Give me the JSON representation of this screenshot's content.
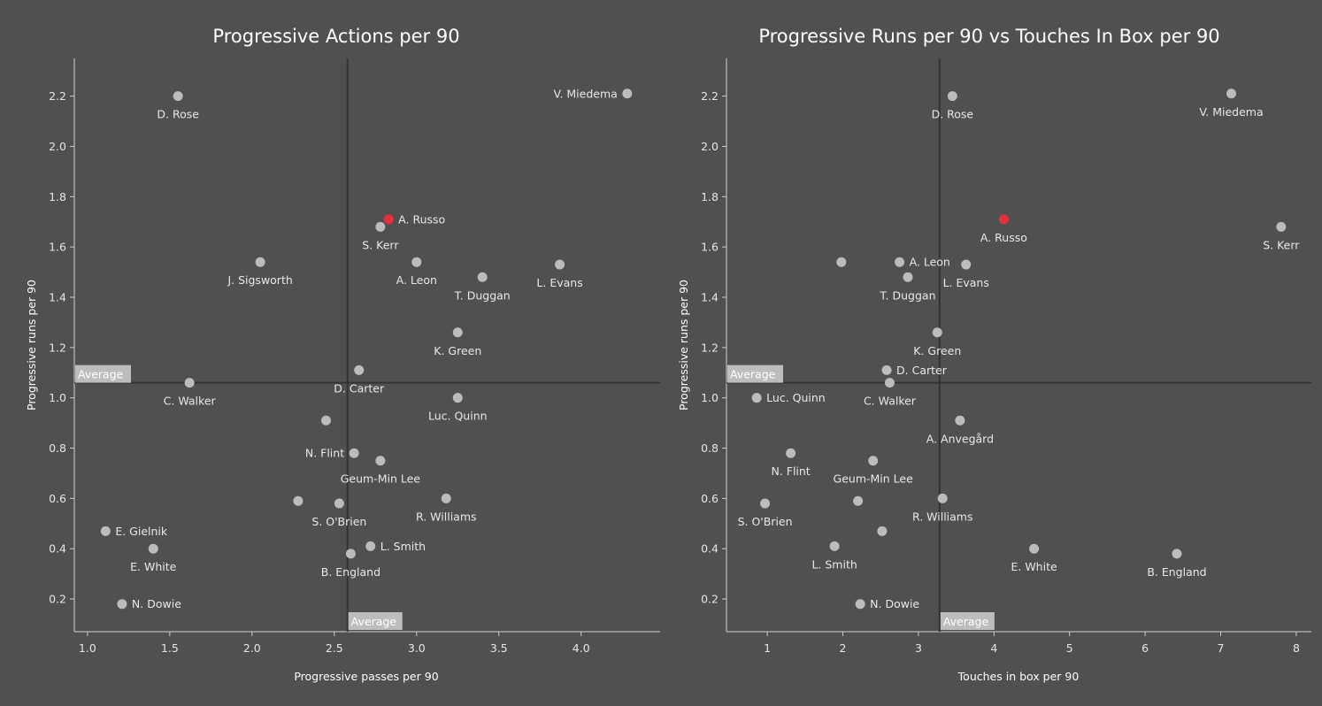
{
  "colors": {
    "background": "#505050",
    "point": "#bcbcbc",
    "highlight": "#e8303a",
    "average_line": "#333333",
    "axis": "#d0d0d0",
    "average_box": "#bdbdbd"
  },
  "chart_data": [
    {
      "type": "scatter",
      "title": "Progressive Actions per 90",
      "xlabel": "Progressive passes per 90",
      "ylabel": "Progressive runs per 90",
      "xlim": [
        0.92,
        4.48
      ],
      "ylim": [
        0.07,
        2.35
      ],
      "xticks": [
        1.0,
        1.5,
        2.0,
        2.5,
        3.0,
        3.5,
        4.0
      ],
      "yticks": [
        0.2,
        0.4,
        0.6,
        0.8,
        1.0,
        1.2,
        1.4,
        1.6,
        1.8,
        2.0,
        2.2
      ],
      "tick_decimals": 1,
      "average_x": 2.58,
      "average_y": 1.06,
      "average_label": "Average",
      "highlight": "A. Russo",
      "points": [
        {
          "name": "V. Miedema",
          "x": 4.28,
          "y": 2.21,
          "label_pos": "left"
        },
        {
          "name": "D. Rose",
          "x": 1.55,
          "y": 2.2,
          "label_pos": "below"
        },
        {
          "name": "A. Russo",
          "x": 2.83,
          "y": 1.71,
          "label_pos": "right"
        },
        {
          "name": "S. Kerr",
          "x": 2.78,
          "y": 1.68,
          "label_pos": "below"
        },
        {
          "name": "J. Sigsworth",
          "x": 2.05,
          "y": 1.54,
          "label_pos": "below"
        },
        {
          "name": "A. Leon",
          "x": 3.0,
          "y": 1.54,
          "label_pos": "below"
        },
        {
          "name": "T. Duggan",
          "x": 3.4,
          "y": 1.48,
          "label_pos": "below"
        },
        {
          "name": "L. Evans",
          "x": 3.87,
          "y": 1.53,
          "label_pos": "below"
        },
        {
          "name": "K. Green",
          "x": 3.25,
          "y": 1.26,
          "label_pos": "below"
        },
        {
          "name": "D. Carter",
          "x": 2.65,
          "y": 1.11,
          "label_pos": "below"
        },
        {
          "name": "C. Walker",
          "x": 1.62,
          "y": 1.06,
          "label_pos": "below"
        },
        {
          "name": "Luc. Quinn",
          "x": 3.25,
          "y": 1.0,
          "label_pos": "below"
        },
        {
          "name": "",
          "x": 2.45,
          "y": 0.91,
          "label_pos": "none"
        },
        {
          "name": "N. Flint",
          "x": 2.62,
          "y": 0.78,
          "label_pos": "left"
        },
        {
          "name": "Geum-Min Lee",
          "x": 2.78,
          "y": 0.75,
          "label_pos": "below"
        },
        {
          "name": "",
          "x": 2.28,
          "y": 0.59,
          "label_pos": "none"
        },
        {
          "name": "S. O'Brien",
          "x": 2.53,
          "y": 0.58,
          "label_pos": "below"
        },
        {
          "name": "R. Williams",
          "x": 3.18,
          "y": 0.6,
          "label_pos": "below"
        },
        {
          "name": "L. Smith",
          "x": 2.72,
          "y": 0.41,
          "label_pos": "right"
        },
        {
          "name": "B. England",
          "x": 2.6,
          "y": 0.38,
          "label_pos": "below"
        },
        {
          "name": "E. Gielnik",
          "x": 1.11,
          "y": 0.47,
          "label_pos": "right"
        },
        {
          "name": "E. White",
          "x": 1.4,
          "y": 0.4,
          "label_pos": "below"
        },
        {
          "name": "N. Dowie",
          "x": 1.21,
          "y": 0.18,
          "label_pos": "right"
        }
      ]
    },
    {
      "type": "scatter",
      "title": "Progressive Runs per 90 vs Touches In Box per 90",
      "xlabel": "Touches in box per 90",
      "ylabel": "Progressive runs per 90",
      "xlim": [
        0.46,
        8.2
      ],
      "ylim": [
        0.07,
        2.35
      ],
      "xticks": [
        1,
        2,
        3,
        4,
        5,
        6,
        7,
        8
      ],
      "yticks": [
        0.2,
        0.4,
        0.6,
        0.8,
        1.0,
        1.2,
        1.4,
        1.6,
        1.8,
        2.0,
        2.2
      ],
      "tick_decimals": 1,
      "average_x": 3.28,
      "average_y": 1.06,
      "average_label": "Average",
      "highlight": "A. Russo",
      "points": [
        {
          "name": "V. Miedema",
          "x": 7.14,
          "y": 2.21,
          "label_pos": "below"
        },
        {
          "name": "D. Rose",
          "x": 3.45,
          "y": 2.2,
          "label_pos": "below"
        },
        {
          "name": "A. Russo",
          "x": 4.13,
          "y": 1.71,
          "label_pos": "below"
        },
        {
          "name": "S. Kerr",
          "x": 7.8,
          "y": 1.68,
          "label_pos": "below"
        },
        {
          "name": "",
          "x": 1.98,
          "y": 1.54,
          "label_pos": "none"
        },
        {
          "name": "A. Leon",
          "x": 2.75,
          "y": 1.54,
          "label_pos": "right"
        },
        {
          "name": "L. Evans",
          "x": 3.63,
          "y": 1.53,
          "label_pos": "below"
        },
        {
          "name": "T. Duggan",
          "x": 2.86,
          "y": 1.48,
          "label_pos": "below"
        },
        {
          "name": "K. Green",
          "x": 3.25,
          "y": 1.26,
          "label_pos": "below"
        },
        {
          "name": "D. Carter",
          "x": 2.58,
          "y": 1.11,
          "label_pos": "right"
        },
        {
          "name": "C. Walker",
          "x": 2.62,
          "y": 1.06,
          "label_pos": "below"
        },
        {
          "name": "Luc. Quinn",
          "x": 0.86,
          "y": 1.0,
          "label_pos": "right"
        },
        {
          "name": "A. Anvegård",
          "x": 3.55,
          "y": 0.91,
          "label_pos": "below"
        },
        {
          "name": "N. Flint",
          "x": 1.31,
          "y": 0.78,
          "label_pos": "below"
        },
        {
          "name": "Geum-Min Lee",
          "x": 2.4,
          "y": 0.75,
          "label_pos": "below"
        },
        {
          "name": "",
          "x": 2.2,
          "y": 0.59,
          "label_pos": "none"
        },
        {
          "name": "S. O'Brien",
          "x": 0.97,
          "y": 0.58,
          "label_pos": "below"
        },
        {
          "name": "R. Williams",
          "x": 3.32,
          "y": 0.6,
          "label_pos": "below"
        },
        {
          "name": "",
          "x": 2.52,
          "y": 0.47,
          "label_pos": "none"
        },
        {
          "name": "L. Smith",
          "x": 1.89,
          "y": 0.41,
          "label_pos": "below"
        },
        {
          "name": "E. White",
          "x": 4.53,
          "y": 0.4,
          "label_pos": "below"
        },
        {
          "name": "B. England",
          "x": 6.42,
          "y": 0.38,
          "label_pos": "below"
        },
        {
          "name": "N. Dowie",
          "x": 2.23,
          "y": 0.18,
          "label_pos": "right"
        }
      ]
    }
  ]
}
